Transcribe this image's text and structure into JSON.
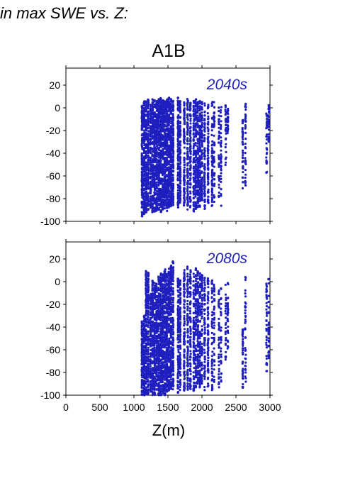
{
  "header": {
    "text": "in max SWE vs. Z:"
  },
  "chart_data": {
    "type": "scatter",
    "title": "A1B",
    "xlabel": "Z(m)",
    "xlim": [
      0,
      3000
    ],
    "xticks": [
      0,
      500,
      1000,
      1500,
      2000,
      2500,
      3000
    ],
    "ylim": [
      -100,
      35
    ],
    "yticks": [
      20,
      0,
      -20,
      -40,
      -60,
      -80,
      -100
    ],
    "marker_color": "#1f1fbf",
    "panels": [
      {
        "label": "2040s",
        "columns": [
          {
            "x": 1120,
            "ymin": -96,
            "ymax": 2,
            "n": 150
          },
          {
            "x": 1150,
            "ymin": -94,
            "ymax": 6,
            "n": 150
          },
          {
            "x": 1180,
            "ymin": -92,
            "ymax": 9,
            "n": 150
          },
          {
            "x": 1210,
            "ymin": -90,
            "ymax": 10,
            "n": 150
          },
          {
            "x": 1245,
            "ymin": -88,
            "ymax": 3,
            "n": 110
          },
          {
            "x": 1275,
            "ymin": -92,
            "ymax": 8,
            "n": 150
          },
          {
            "x": 1305,
            "ymin": -93,
            "ymax": 7,
            "n": 150
          },
          {
            "x": 1335,
            "ymin": -91,
            "ymax": 6,
            "n": 150
          },
          {
            "x": 1365,
            "ymin": -90,
            "ymax": 8,
            "n": 150
          },
          {
            "x": 1395,
            "ymin": -92,
            "ymax": 9,
            "n": 150
          },
          {
            "x": 1425,
            "ymin": -90,
            "ymax": 7,
            "n": 150
          },
          {
            "x": 1455,
            "ymin": -89,
            "ymax": 6,
            "n": 150
          },
          {
            "x": 1485,
            "ymin": -91,
            "ymax": 8,
            "n": 150
          },
          {
            "x": 1515,
            "ymin": -88,
            "ymax": 9,
            "n": 150
          },
          {
            "x": 1545,
            "ymin": -87,
            "ymax": 8,
            "n": 150
          },
          {
            "x": 1575,
            "ymin": -86,
            "ymax": 7,
            "n": 150
          },
          {
            "x": 1650,
            "ymin": -88,
            "ymax": 9,
            "n": 120
          },
          {
            "x": 1680,
            "ymin": -84,
            "ymax": 6,
            "n": 110
          },
          {
            "x": 1740,
            "ymin": -86,
            "ymax": 5,
            "n": 110
          },
          {
            "x": 1790,
            "ymin": -90,
            "ymax": 8,
            "n": 110
          },
          {
            "x": 1830,
            "ymin": -88,
            "ymax": 5,
            "n": 90
          },
          {
            "x": 1880,
            "ymin": -92,
            "ymax": 7,
            "n": 90
          },
          {
            "x": 1910,
            "ymin": -90,
            "ymax": 8,
            "n": 100
          },
          {
            "x": 1940,
            "ymin": -88,
            "ymax": 6,
            "n": 100
          },
          {
            "x": 1970,
            "ymin": -89,
            "ymax": 7,
            "n": 100
          },
          {
            "x": 2000,
            "ymin": -82,
            "ymax": 6,
            "n": 80
          },
          {
            "x": 2040,
            "ymin": -90,
            "ymax": 6,
            "n": 80
          },
          {
            "x": 2090,
            "ymin": -86,
            "ymax": 4,
            "n": 80
          },
          {
            "x": 2150,
            "ymin": -88,
            "ymax": 6,
            "n": 60
          },
          {
            "x": 2180,
            "ymin": -84,
            "ymax": 5,
            "n": 50
          },
          {
            "x": 2250,
            "ymin": -80,
            "ymax": 5,
            "n": 40
          },
          {
            "x": 2280,
            "ymin": -90,
            "ymax": 2,
            "n": 40
          },
          {
            "x": 2350,
            "ymin": -52,
            "ymax": 4,
            "n": 30
          },
          {
            "x": 2380,
            "ymin": -25,
            "ymax": 4,
            "n": 25
          },
          {
            "x": 2600,
            "ymin": -72,
            "ymax": -10,
            "n": 40
          },
          {
            "x": 2640,
            "ymin": -70,
            "ymax": 4,
            "n": 40
          },
          {
            "x": 2950,
            "ymin": -60,
            "ymax": 2,
            "n": 30
          },
          {
            "x": 2980,
            "ymin": -30,
            "ymax": 3,
            "n": 25
          }
        ]
      },
      {
        "label": "2080s",
        "columns": [
          {
            "x": 1120,
            "ymin": -100,
            "ymax": -35,
            "n": 120
          },
          {
            "x": 1150,
            "ymin": -100,
            "ymax": -30,
            "n": 120
          },
          {
            "x": 1180,
            "ymin": -100,
            "ymax": 10,
            "n": 140
          },
          {
            "x": 1210,
            "ymin": -100,
            "ymax": 8,
            "n": 140
          },
          {
            "x": 1245,
            "ymin": -98,
            "ymax": -10,
            "n": 110
          },
          {
            "x": 1275,
            "ymin": -100,
            "ymax": 2,
            "n": 140
          },
          {
            "x": 1305,
            "ymin": -100,
            "ymax": 3,
            "n": 140
          },
          {
            "x": 1335,
            "ymin": -99,
            "ymax": 0,
            "n": 140
          },
          {
            "x": 1365,
            "ymin": -100,
            "ymax": 5,
            "n": 140
          },
          {
            "x": 1395,
            "ymin": -100,
            "ymax": 8,
            "n": 140
          },
          {
            "x": 1425,
            "ymin": -99,
            "ymax": 10,
            "n": 140
          },
          {
            "x": 1455,
            "ymin": -100,
            "ymax": 12,
            "n": 140
          },
          {
            "x": 1485,
            "ymin": -98,
            "ymax": 8,
            "n": 140
          },
          {
            "x": 1515,
            "ymin": -97,
            "ymax": 12,
            "n": 140
          },
          {
            "x": 1545,
            "ymin": -96,
            "ymax": 15,
            "n": 140
          },
          {
            "x": 1575,
            "ymin": -95,
            "ymax": 18,
            "n": 120
          },
          {
            "x": 1650,
            "ymin": -98,
            "ymax": 3,
            "n": 110
          },
          {
            "x": 1680,
            "ymin": -96,
            "ymax": 2,
            "n": 100
          },
          {
            "x": 1740,
            "ymin": -97,
            "ymax": 12,
            "n": 110
          },
          {
            "x": 1790,
            "ymin": -96,
            "ymax": 14,
            "n": 100
          },
          {
            "x": 1830,
            "ymin": -95,
            "ymax": 10,
            "n": 90
          },
          {
            "x": 1880,
            "ymin": -97,
            "ymax": 8,
            "n": 90
          },
          {
            "x": 1910,
            "ymin": -95,
            "ymax": 12,
            "n": 90
          },
          {
            "x": 1940,
            "ymin": -96,
            "ymax": 10,
            "n": 90
          },
          {
            "x": 1970,
            "ymin": -95,
            "ymax": 8,
            "n": 90
          },
          {
            "x": 2000,
            "ymin": -90,
            "ymax": 6,
            "n": 70
          },
          {
            "x": 2040,
            "ymin": -96,
            "ymax": 5,
            "n": 70
          },
          {
            "x": 2090,
            "ymin": -94,
            "ymax": 3,
            "n": 70
          },
          {
            "x": 2150,
            "ymin": -96,
            "ymax": 2,
            "n": 50
          },
          {
            "x": 2180,
            "ymin": -90,
            "ymax": 0,
            "n": 40
          },
          {
            "x": 2250,
            "ymin": -98,
            "ymax": -5,
            "n": 40
          },
          {
            "x": 2280,
            "ymin": -92,
            "ymax": 0,
            "n": 35
          },
          {
            "x": 2350,
            "ymin": -70,
            "ymax": 0,
            "n": 30
          },
          {
            "x": 2380,
            "ymin": -60,
            "ymax": 2,
            "n": 30
          },
          {
            "x": 2600,
            "ymin": -95,
            "ymax": -40,
            "n": 40
          },
          {
            "x": 2640,
            "ymin": -92,
            "ymax": 4,
            "n": 40
          },
          {
            "x": 2950,
            "ymin": -85,
            "ymax": 2,
            "n": 40
          },
          {
            "x": 2980,
            "ymin": -70,
            "ymax": 3,
            "n": 30
          }
        ]
      }
    ]
  }
}
